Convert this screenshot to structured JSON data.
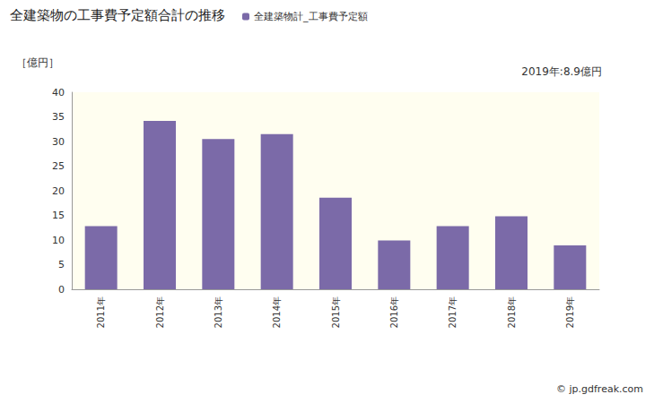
{
  "chart_data": {
    "type": "bar",
    "title": "全建築物の工事費予定額合計の推移",
    "ylabel": "［億円］",
    "annotation": "2019年:8.9億円",
    "source": "© jp.gdfreak.com",
    "categories": [
      "2011年",
      "2012年",
      "2013年",
      "2014年",
      "2015年",
      "2016年",
      "2017年",
      "2018年",
      "2019年"
    ],
    "series": [
      {
        "name": "全建築物計_工事費予定額",
        "color": "#7b6aa8",
        "values": [
          12.8,
          34.2,
          30.5,
          31.5,
          18.6,
          9.9,
          12.8,
          14.8,
          8.9
        ]
      }
    ],
    "ylim": [
      0,
      40
    ],
    "yticks": [
      0,
      5,
      10,
      15,
      20,
      25,
      30,
      35,
      40
    ],
    "grid": false,
    "legend": "top"
  }
}
